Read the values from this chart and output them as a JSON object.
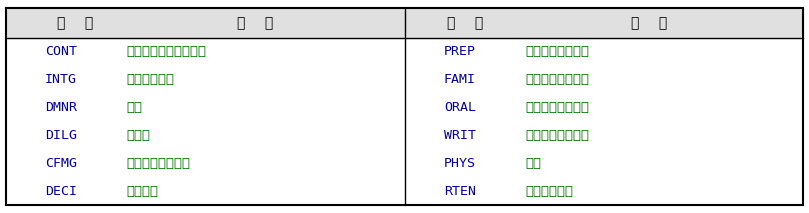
{
  "headers_left": [
    "变    量",
    "描    述"
  ],
  "headers_right": [
    "变    量",
    "描    述"
  ],
  "left_data": [
    [
      "CONT",
      "律师与法官的接触次数"
    ],
    [
      "INTG",
      "法官正直程度"
    ],
    [
      "DMNR",
      "风度"
    ],
    [
      "DILG",
      "勤勉度"
    ],
    [
      "CFMG",
      "案例流程管理水平"
    ],
    [
      "DECI",
      "决策效率"
    ]
  ],
  "right_data": [
    [
      "PREP",
      "审理前的准备工作"
    ],
    [
      "FAMI",
      "对法律的熏稔程度"
    ],
    [
      "ORAL",
      "口头裁决的可靠度"
    ],
    [
      "WRIT",
      "书面裁决的可靠度"
    ],
    [
      "PHYS",
      "体能"
    ],
    [
      "RTEN",
      "是否值得保留"
    ]
  ],
  "header_color": "#000000",
  "var_color": "#000099",
  "desc_color": "#006600",
  "bg_color": "#ffffff",
  "border_color": "#000000",
  "header_bg": "#e0e0e0",
  "figsize": [
    8.09,
    2.13
  ],
  "dpi": 100
}
